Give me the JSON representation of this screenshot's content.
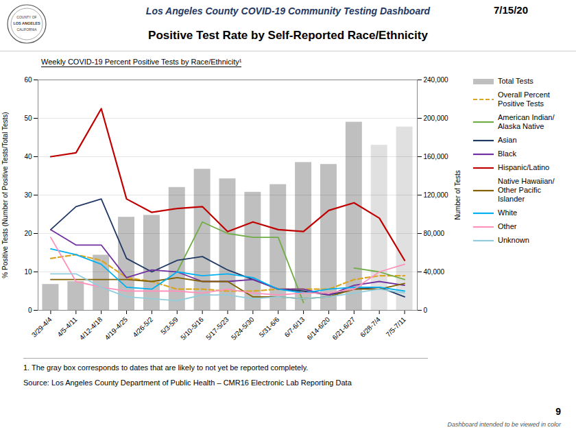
{
  "chart_data": {
    "type": "bar",
    "title": "Positive Test Rate by Self-Reported Race/Ethnicity",
    "subtitle": "Weekly COVID-19 Percent Positive Tests by Race/Ethnicity¹",
    "annotations": [
      "Los Angeles County COVID-19 Community Testing Dashboard",
      "7/15/20",
      "1.    The gray box corresponds to dates that are likely to not yet be reported completely.",
      "Source: Los Angeles County Department of Public Health – CMR16 Electronic Lab Reporting Data",
      "Dashboard intended to be viewed in color",
      "9",
      "COUNTY OF",
      "LOS ANGELES",
      "CALIFORNIA"
    ],
    "categories": [
      "3/29-4/4",
      "4/5-4/11",
      "4/12-4/18",
      "4/19-4/25",
      "4/26-5/2",
      "5/3-5/9",
      "5/10-5/16",
      "5/17-5/23",
      "5/24-5/30",
      "5/31-6/6",
      "6/7-6/13",
      "6/14-6/20",
      "6/21-6/27",
      "6/28-7/4",
      "7/5-7/11"
    ],
    "ylabel": "% Positive Tests (Number of Positive Tests/Total Tests)",
    "y2label": "Number of Tests",
    "ylim": [
      0,
      60
    ],
    "yticks": [
      0,
      10,
      20,
      30,
      40,
      50,
      60
    ],
    "y2lim": [
      0,
      240000
    ],
    "y2ticks": [
      0,
      {
        "value": 40000,
        "label": "40,000"
      },
      {
        "value": 80000,
        "label": "80,000"
      },
      {
        "value": 120000,
        "label": "120,000"
      },
      {
        "value": 160000,
        "label": "160,000"
      },
      {
        "value": 200000,
        "label": "200,000"
      },
      {
        "value": 240000,
        "label": "240,000"
      }
    ],
    "grid": true,
    "legend": "right",
    "series": [
      {
        "name": "Total Tests",
        "type": "bar",
        "axis": "y2",
        "color": "#BFBFBF",
        "colors": [
          "#BFBFBF",
          "#BFBFBF",
          "#BFBFBF",
          "#BFBFBF",
          "#BFBFBF",
          "#BFBFBF",
          "#BFBFBF",
          "#BFBFBF",
          "#BFBFBF",
          "#BFBFBF",
          "#BFBFBF",
          "#BFBFBF",
          "#BFBFBF",
          "#E0E0E0",
          "#E0E0E0"
        ],
        "values": [
          27000,
          30000,
          57500,
          97000,
          99000,
          128000,
          147000,
          137000,
          123000,
          131000,
          154000,
          152000,
          196000,
          172000,
          191000
        ]
      },
      {
        "name": "Overall Percent\nPositive Tests",
        "type": "line",
        "line_style": "dashed",
        "color": "#DAA520",
        "values": [
          13.5,
          14.5,
          13.0,
          8.5,
          7.5,
          5.5,
          5.5,
          5.0,
          5.0,
          5.5,
          5.5,
          5.5,
          8.0,
          9.0,
          9.0
        ]
      },
      {
        "name": "American Indian/\nAlaska Native",
        "type": "line",
        "line_style": "solid",
        "color": "#70AD47",
        "values": [
          null,
          null,
          null,
          null,
          null,
          10.0,
          23.0,
          20.0,
          19.0,
          19.0,
          2.0,
          null,
          11.0,
          10.0,
          8.0
        ]
      },
      {
        "name": "Asian",
        "type": "line",
        "line_style": "solid",
        "color": "#1F3864",
        "values": [
          21.0,
          27.0,
          29.0,
          13.5,
          10.0,
          13.0,
          14.0,
          10.5,
          8.0,
          5.5,
          5.0,
          4.0,
          5.5,
          6.0,
          3.5
        ]
      },
      {
        "name": "Black",
        "type": "line",
        "line_style": "solid",
        "color": "#7030A0",
        "values": [
          21.0,
          17.0,
          17.0,
          8.5,
          10.5,
          10.0,
          7.5,
          7.5,
          8.0,
          5.5,
          5.5,
          4.0,
          6.5,
          7.5,
          6.5
        ]
      },
      {
        "name": "Hispanic/Latino",
        "type": "line",
        "line_style": "solid",
        "color": "#C00000",
        "values": [
          40.0,
          41.0,
          52.5,
          29.0,
          25.5,
          26.5,
          27.0,
          20.5,
          23.0,
          21.0,
          20.5,
          26.0,
          28.0,
          24.0,
          13.0
        ]
      },
      {
        "name": "Native Hawaiian/\nOther Pacific\nIslander",
        "type": "line",
        "line_style": "solid",
        "color": "#806000",
        "values": [
          8.0,
          8.0,
          8.0,
          8.0,
          7.5,
          8.5,
          7.5,
          7.5,
          3.5,
          3.5,
          3.0,
          3.5,
          5.5,
          5.5,
          7.0
        ]
      },
      {
        "name": "White",
        "type": "line",
        "line_style": "solid",
        "color": "#00B0F0",
        "values": [
          16.0,
          14.5,
          12.0,
          6.0,
          5.5,
          10.0,
          9.0,
          9.5,
          8.5,
          5.5,
          4.5,
          5.5,
          6.0,
          6.0,
          5.0
        ]
      },
      {
        "name": "Other",
        "type": "line",
        "line_style": "solid",
        "color": "#FF92BB",
        "values": [
          19.0,
          7.5,
          6.0,
          5.0,
          5.0,
          5.0,
          4.5,
          5.5,
          4.5,
          4.0,
          4.5,
          4.5,
          5.5,
          10.0,
          12.0
        ]
      },
      {
        "name": "Unknown",
        "type": "line",
        "line_style": "solid",
        "color": "#92CDDC",
        "values": [
          9.5,
          9.5,
          6.0,
          3.5,
          3.0,
          2.5,
          4.0,
          4.0,
          3.0,
          3.5,
          3.0,
          3.5,
          4.5,
          5.5,
          4.5
        ]
      }
    ]
  }
}
